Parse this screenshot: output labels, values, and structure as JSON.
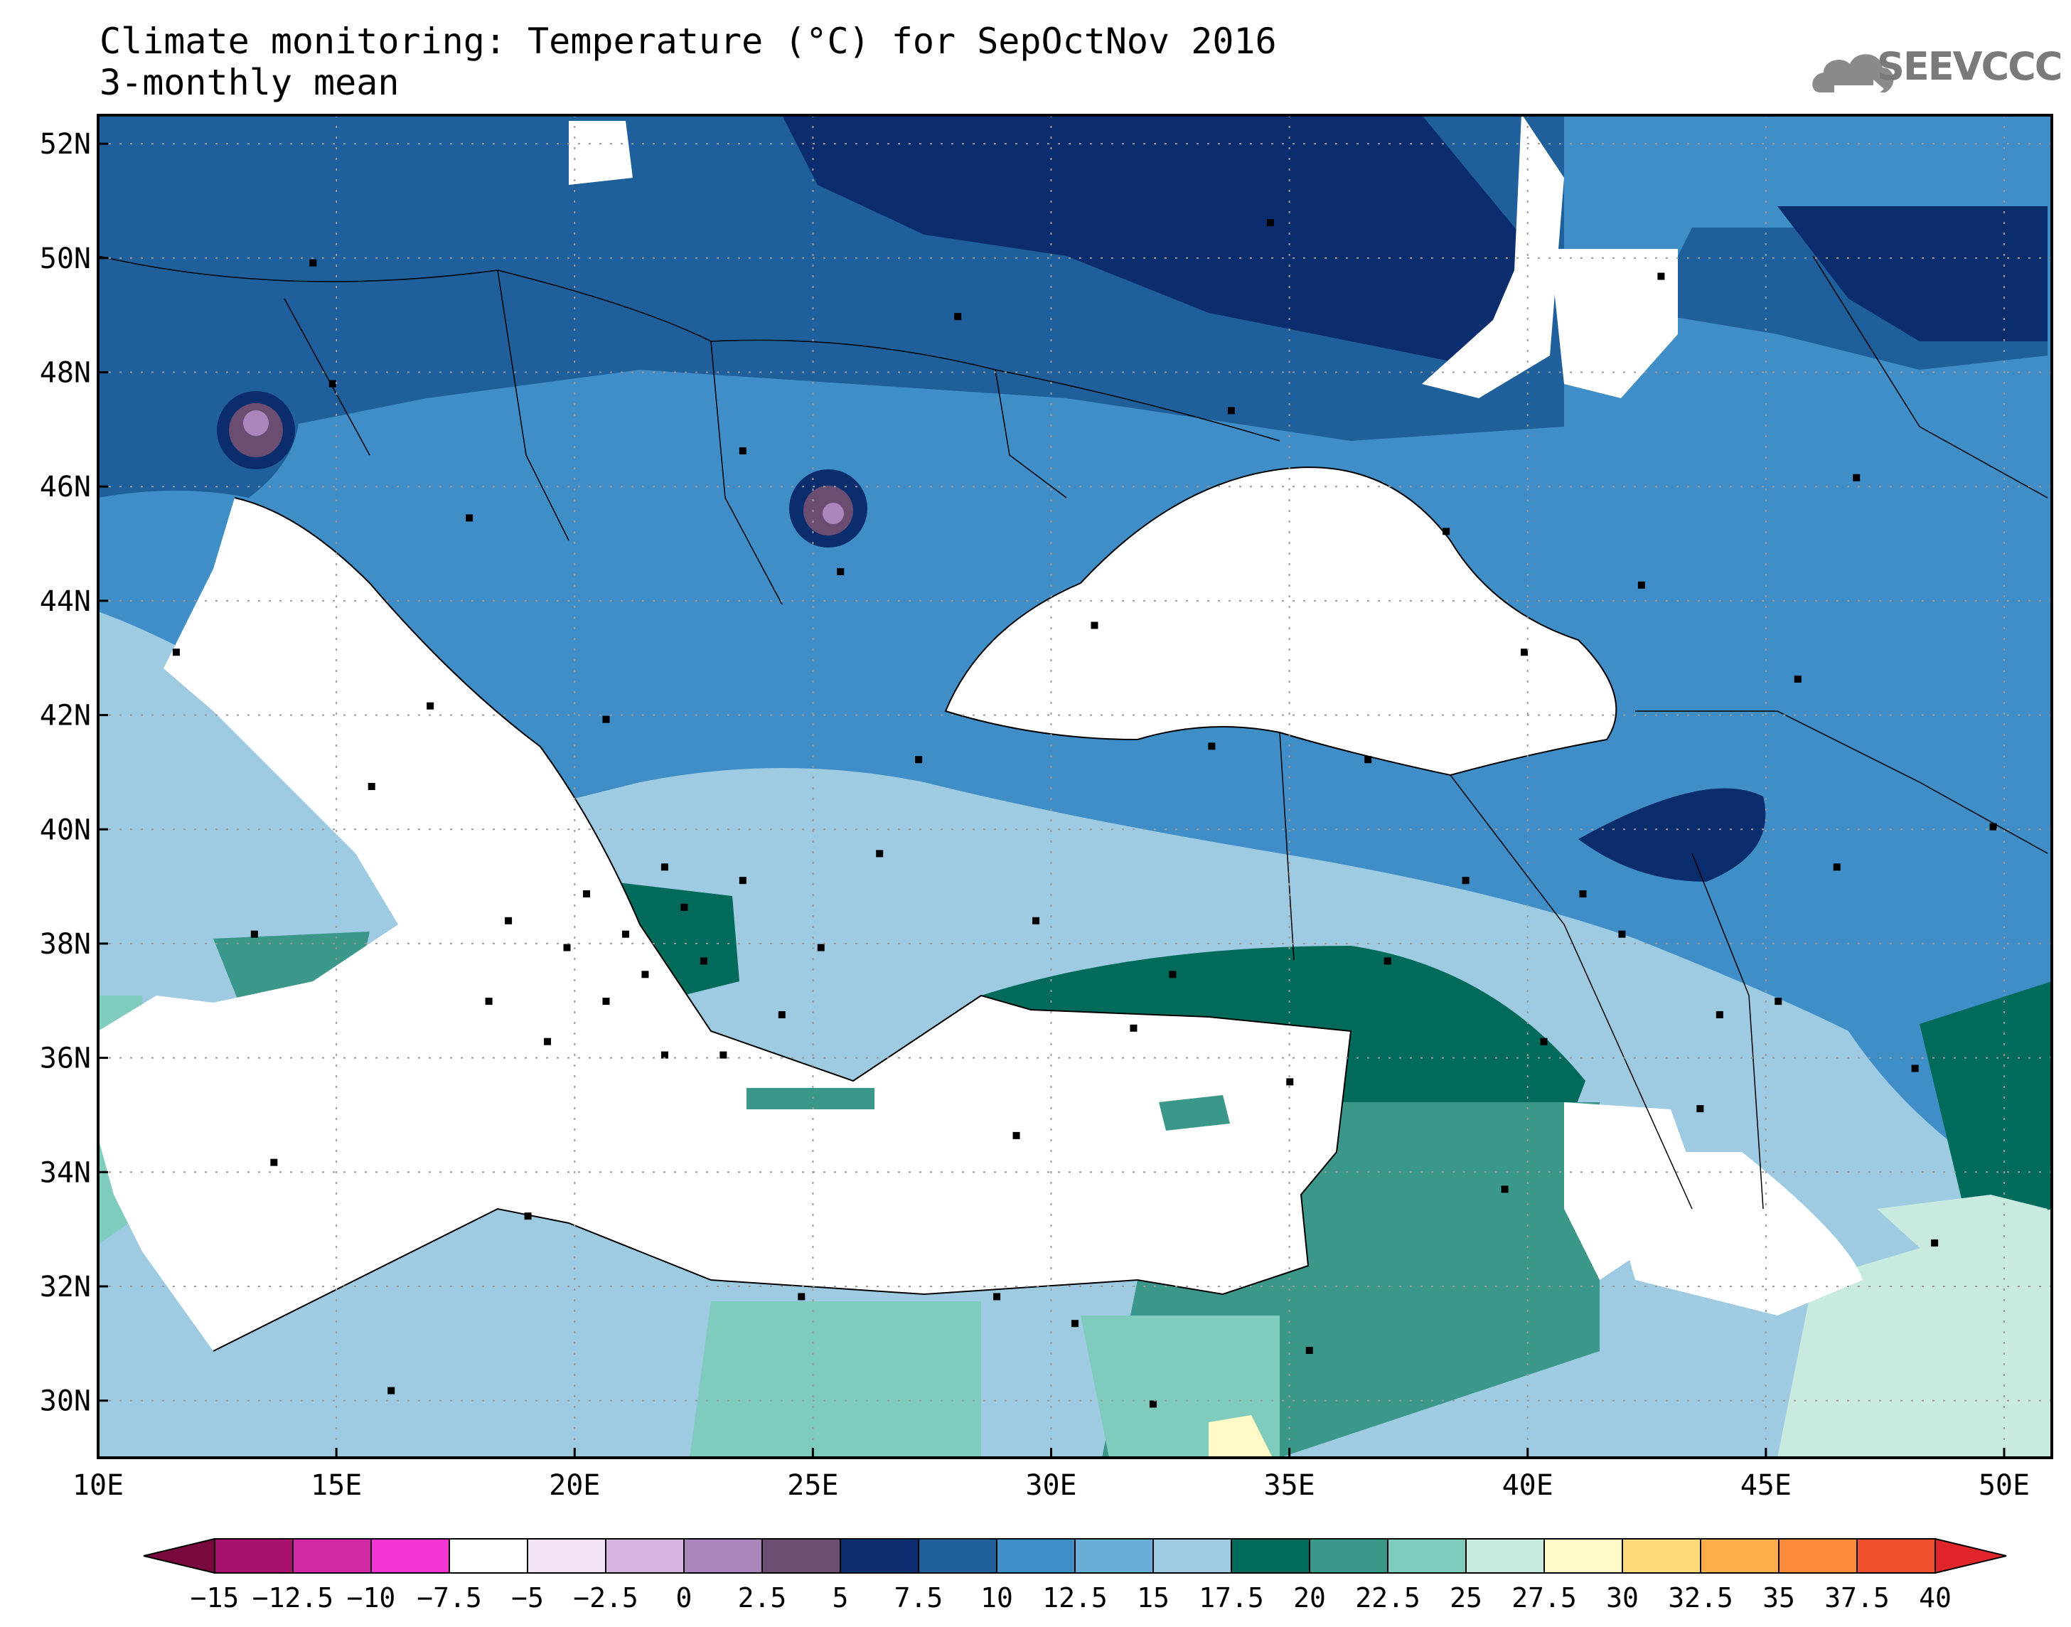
{
  "title": {
    "line1": "Climate monitoring: Temperature (°C) for SepOctNov 2016",
    "line2": "3-monthly mean"
  },
  "logo": {
    "text": "SEEVCCC",
    "icon": "cloud-icon"
  },
  "map": {
    "lon_range": [
      10,
      51
    ],
    "lat_range": [
      29,
      52.5
    ],
    "x_ticks": [
      "10E",
      "15E",
      "20E",
      "25E",
      "30E",
      "35E",
      "40E",
      "45E",
      "50E"
    ],
    "y_ticks": [
      "52N",
      "50N",
      "48N",
      "46N",
      "44N",
      "42N",
      "40N",
      "38N",
      "36N",
      "34N",
      "32N",
      "30N"
    ],
    "grid": "dotted"
  },
  "colorbar": {
    "labels": [
      "-15",
      "-12.5",
      "-10",
      "-7.5",
      "-5",
      "-2.5",
      "0",
      "2.5",
      "5",
      "7.5",
      "10",
      "12.5",
      "15",
      "17.5",
      "20",
      "22.5",
      "25",
      "27.5",
      "30",
      "32.5",
      "35",
      "37.5",
      "40"
    ],
    "colors": [
      "#7a0a3e",
      "#a8106e",
      "#d02aa8",
      "#f435d6",
      "#ffffff",
      "#f0e4f6",
      "#d8b4e0",
      "#ab86bd",
      "#6c4d72",
      "#0b2d6e",
      "#1f5f9b",
      "#3f8ec8",
      "#6aaed8",
      "#9ecae2",
      "#006b5a",
      "#3a978a",
      "#7fcbbd",
      "#c8eadf",
      "#fffac8",
      "#ffd97a",
      "#fdae48",
      "#fb8a3a",
      "#f1502e",
      "#e0262a"
    ]
  }
}
